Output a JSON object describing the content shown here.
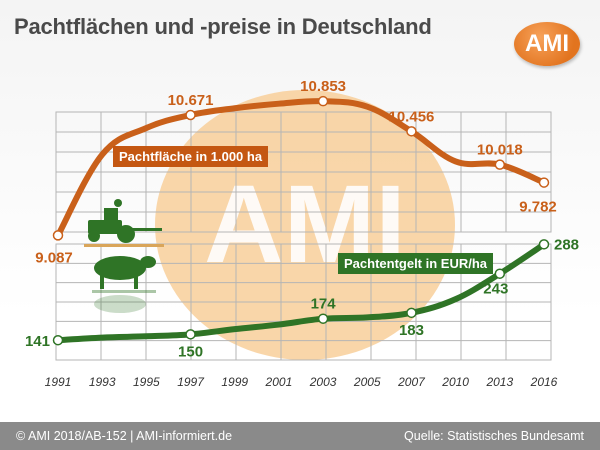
{
  "title": "Pachtflächen und -preise in Deutschland",
  "logo_text": "AMI",
  "watermark_text": "AMI",
  "footer": {
    "left": "© AMI 2018/AB-152 | AMI-informiert.de",
    "right": "Quelle: Statistisches Bundesamt"
  },
  "colors": {
    "area": "#c9601a",
    "rent": "#2f7426",
    "watermark": "#f8cf9a",
    "grid": "#b5b5b5"
  },
  "chart_data": {
    "type": "line",
    "x_ticks": [
      "1991",
      "1993",
      "1995",
      "1997",
      "1999",
      "2001",
      "2003",
      "2005",
      "2007",
      "2010",
      "2013",
      "2016"
    ],
    "grid": true,
    "series": [
      {
        "name": "Pachtfläche in 1.000 ha",
        "unit": "1.000 ha",
        "values": [
          9087,
          10150,
          10500,
          10671,
          10760,
          10820,
          10853,
          10780,
          10456,
          10060,
          10018,
          9782
        ],
        "labels": [
          "9.087",
          null,
          null,
          "10.671",
          null,
          null,
          "10.853",
          null,
          "10.456",
          null,
          "10.018",
          "9.782"
        ],
        "ylim": [
          8500,
          11000
        ]
      },
      {
        "name": "Pachtentgelt in EUR/ha",
        "unit": "EUR/ha",
        "values": [
          141,
          145,
          147,
          150,
          158,
          165,
          174,
          176,
          183,
          204,
          243,
          288
        ],
        "labels": [
          "141",
          null,
          null,
          "150",
          null,
          null,
          "174",
          null,
          "183",
          null,
          "243",
          "288"
        ],
        "ylim": [
          80,
          310
        ]
      }
    ]
  }
}
